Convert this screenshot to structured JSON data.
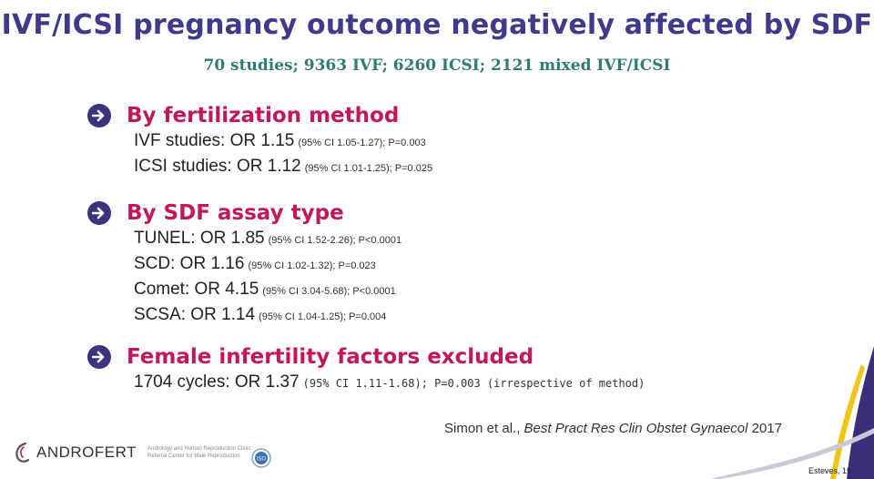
{
  "slide": {
    "title": "IVF/ICSI pregnancy outcome negatively affected by SDF",
    "subtitle": "70 studies; 9363 IVF; 6260 ICSI;  2121 mixed IVF/ICSI",
    "sections": [
      {
        "heading": "By fertilization method",
        "lines": [
          {
            "text": "IVF studies: OR 1.15",
            "ci": "(95% CI 1.05-1.27); P=0.003"
          },
          {
            "text": "ICSI studies: OR 1.12",
            "ci": "(95% CI 1.01-1.25); P=0.025"
          }
        ]
      },
      {
        "heading": "By SDF assay type",
        "lines": [
          {
            "text": "TUNEL: OR 1.85",
            "ci": "(95% CI 1.52-2.26); P<0.0001"
          },
          {
            "text": "SCD: OR 1.16",
            "ci": "(95% CI 1.02-1.32); P=0.023"
          },
          {
            "text": "Comet: OR 4.15",
            "ci": "(95% CI 3.04-5.68); P<0.0001"
          },
          {
            "text": "SCSA: OR 1.14",
            "ci": "(95% CI  1.04-1.25); P=0.004"
          }
        ]
      },
      {
        "heading": "Female infertility factors excluded",
        "lines": [
          {
            "text": "1704 cycles: OR 1.37",
            "ci": "(95% CI 1.11-1.68); P=0.003 (irrespective of method)"
          }
        ]
      }
    ],
    "citation": {
      "authors": "Simon et al.,",
      "journal": "Best Pract Res Clin Obstet Gynaecol",
      "year": "2017"
    },
    "logo": {
      "name": "ANDROFERT",
      "tagline_1": "Andrology and Human Reproduction Clinic",
      "tagline_2": "Referral Center for Male Reproduction"
    },
    "iso_badge": "ISO",
    "footer_tag": "Esteves, 19"
  },
  "colors": {
    "title": "#3f3a8c",
    "subtitle": "#2e7d6f",
    "heading": "#c2185b",
    "arrow": "#3a337e"
  }
}
